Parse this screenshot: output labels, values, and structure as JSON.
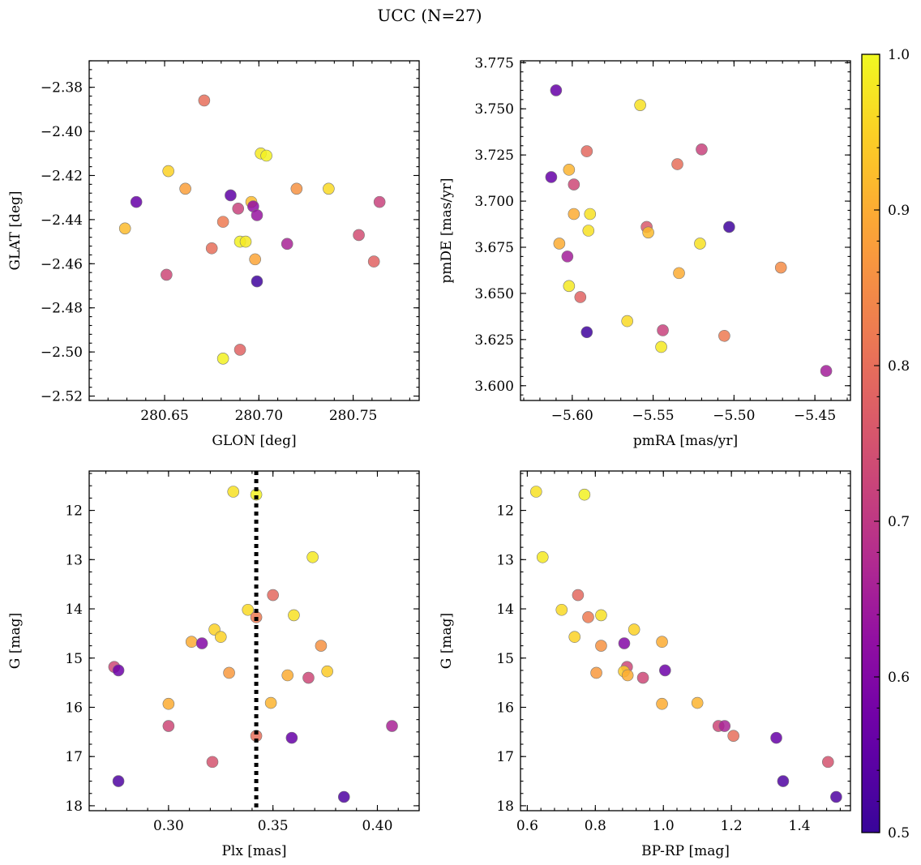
{
  "figure": {
    "title": "UCC (N=27)"
  },
  "colorbar": {
    "min": 0.5,
    "max": 1.0,
    "ticks": [
      "0.5",
      "0.6",
      "0.7",
      "0.8",
      "0.9",
      "1.0"
    ],
    "colormap": "plasma"
  },
  "chart_data": [
    {
      "type": "scatter",
      "xlabel": "GLON [deg]",
      "ylabel": "GLAT [deg]",
      "xlim": [
        280.61,
        280.785
      ],
      "ylim": [
        -2.522,
        -2.368
      ],
      "yinverted": false,
      "xticks": [
        "280.65",
        "280.70",
        "280.75"
      ],
      "yticks": [
        "-2.38",
        "-2.40",
        "-2.42",
        "-2.44",
        "-2.46",
        "-2.48",
        "-2.50",
        "-2.52"
      ],
      "points": [
        {
          "x": 280.671,
          "y": -2.386,
          "c": 0.8
        },
        {
          "x": 280.701,
          "y": -2.41,
          "c": 0.98
        },
        {
          "x": 280.704,
          "y": -2.411,
          "c": 0.99
        },
        {
          "x": 280.652,
          "y": -2.418,
          "c": 0.95
        },
        {
          "x": 280.661,
          "y": -2.426,
          "c": 0.88
        },
        {
          "x": 280.72,
          "y": -2.426,
          "c": 0.86
        },
        {
          "x": 280.737,
          "y": -2.426,
          "c": 0.96
        },
        {
          "x": 280.685,
          "y": -2.429,
          "c": 0.55
        },
        {
          "x": 280.696,
          "y": -2.432,
          "c": 0.92
        },
        {
          "x": 280.697,
          "y": -2.434,
          "c": 0.62
        },
        {
          "x": 280.635,
          "y": -2.432,
          "c": 0.56
        },
        {
          "x": 280.764,
          "y": -2.432,
          "c": 0.72
        },
        {
          "x": 280.689,
          "y": -2.435,
          "c": 0.72
        },
        {
          "x": 280.699,
          "y": -2.438,
          "c": 0.63
        },
        {
          "x": 280.681,
          "y": -2.441,
          "c": 0.82
        },
        {
          "x": 280.629,
          "y": -2.444,
          "c": 0.92
        },
        {
          "x": 280.753,
          "y": -2.447,
          "c": 0.74
        },
        {
          "x": 280.69,
          "y": -2.45,
          "c": 0.99
        },
        {
          "x": 280.693,
          "y": -2.45,
          "c": 0.98
        },
        {
          "x": 280.715,
          "y": -2.451,
          "c": 0.66
        },
        {
          "x": 280.675,
          "y": -2.453,
          "c": 0.8
        },
        {
          "x": 280.698,
          "y": -2.458,
          "c": 0.89
        },
        {
          "x": 280.761,
          "y": -2.459,
          "c": 0.78
        },
        {
          "x": 280.651,
          "y": -2.465,
          "c": 0.73
        },
        {
          "x": 280.699,
          "y": -2.468,
          "c": 0.51
        },
        {
          "x": 280.69,
          "y": -2.499,
          "c": 0.78
        },
        {
          "x": 280.681,
          "y": -2.503,
          "c": 0.99
        }
      ]
    },
    {
      "type": "scatter",
      "xlabel": "pmRA [mas/yr]",
      "ylabel": "pmDE [mas/yr]",
      "xlim": [
        -5.632,
        -5.428
      ],
      "ylim": [
        3.592,
        3.776
      ],
      "yinverted": false,
      "xticks": [
        "-5.60",
        "-5.55",
        "-5.50",
        "-5.45"
      ],
      "yticks": [
        "3.600",
        "3.625",
        "3.650",
        "3.675",
        "3.700",
        "3.725",
        "3.750",
        "3.775"
      ],
      "points": [
        {
          "x": -5.61,
          "y": 3.76,
          "c": 0.56
        },
        {
          "x": -5.558,
          "y": 3.752,
          "c": 0.97
        },
        {
          "x": -5.591,
          "y": 3.727,
          "c": 0.79
        },
        {
          "x": -5.52,
          "y": 3.728,
          "c": 0.72
        },
        {
          "x": -5.535,
          "y": 3.72,
          "c": 0.8
        },
        {
          "x": -5.602,
          "y": 3.717,
          "c": 0.91
        },
        {
          "x": -5.613,
          "y": 3.713,
          "c": 0.56
        },
        {
          "x": -5.599,
          "y": 3.709,
          "c": 0.73
        },
        {
          "x": -5.599,
          "y": 3.693,
          "c": 0.9
        },
        {
          "x": -5.589,
          "y": 3.693,
          "c": 0.97
        },
        {
          "x": -5.554,
          "y": 3.686,
          "c": 0.76
        },
        {
          "x": -5.553,
          "y": 3.683,
          "c": 0.92
        },
        {
          "x": -5.59,
          "y": 3.684,
          "c": 0.97
        },
        {
          "x": -5.503,
          "y": 3.686,
          "c": 0.51
        },
        {
          "x": -5.608,
          "y": 3.677,
          "c": 0.9
        },
        {
          "x": -5.521,
          "y": 3.677,
          "c": 0.97
        },
        {
          "x": -5.603,
          "y": 3.67,
          "c": 0.65
        },
        {
          "x": -5.471,
          "y": 3.664,
          "c": 0.85
        },
        {
          "x": -5.534,
          "y": 3.661,
          "c": 0.9
        },
        {
          "x": -5.602,
          "y": 3.654,
          "c": 0.98
        },
        {
          "x": -5.595,
          "y": 3.648,
          "c": 0.78
        },
        {
          "x": -5.566,
          "y": 3.635,
          "c": 0.96
        },
        {
          "x": -5.544,
          "y": 3.63,
          "c": 0.72
        },
        {
          "x": -5.591,
          "y": 3.629,
          "c": 0.51
        },
        {
          "x": -5.506,
          "y": 3.627,
          "c": 0.82
        },
        {
          "x": -5.545,
          "y": 3.621,
          "c": 0.98
        },
        {
          "x": -5.443,
          "y": 3.608,
          "c": 0.65
        }
      ]
    },
    {
      "type": "scatter",
      "xlabel": "Plx [mas]",
      "ylabel": "G [mag]",
      "xlim": [
        0.262,
        0.42
      ],
      "ylim": [
        18.1,
        11.2
      ],
      "yinverted": true,
      "xticks": [
        "0.30",
        "0.35",
        "0.40"
      ],
      "yticks": [
        "12",
        "13",
        "14",
        "15",
        "16",
        "17",
        "18"
      ],
      "vline": 0.342,
      "points": [
        {
          "x": 0.331,
          "y": 11.62,
          "c": 0.97
        },
        {
          "x": 0.342,
          "y": 11.68,
          "c": 0.99
        },
        {
          "x": 0.369,
          "y": 12.95,
          "c": 0.98
        },
        {
          "x": 0.35,
          "y": 13.72,
          "c": 0.79
        },
        {
          "x": 0.338,
          "y": 14.02,
          "c": 0.96
        },
        {
          "x": 0.36,
          "y": 14.13,
          "c": 0.97
        },
        {
          "x": 0.342,
          "y": 14.17,
          "c": 0.82
        },
        {
          "x": 0.322,
          "y": 14.42,
          "c": 0.95
        },
        {
          "x": 0.325,
          "y": 14.57,
          "c": 0.95
        },
        {
          "x": 0.311,
          "y": 14.67,
          "c": 0.9
        },
        {
          "x": 0.316,
          "y": 14.7,
          "c": 0.6
        },
        {
          "x": 0.373,
          "y": 14.75,
          "c": 0.86
        },
        {
          "x": 0.274,
          "y": 15.18,
          "c": 0.73
        },
        {
          "x": 0.276,
          "y": 15.25,
          "c": 0.57
        },
        {
          "x": 0.376,
          "y": 15.27,
          "c": 0.94
        },
        {
          "x": 0.329,
          "y": 15.3,
          "c": 0.87
        },
        {
          "x": 0.357,
          "y": 15.35,
          "c": 0.9
        },
        {
          "x": 0.367,
          "y": 15.4,
          "c": 0.73
        },
        {
          "x": 0.3,
          "y": 15.93,
          "c": 0.9
        },
        {
          "x": 0.349,
          "y": 15.91,
          "c": 0.91
        },
        {
          "x": 0.3,
          "y": 16.38,
          "c": 0.73
        },
        {
          "x": 0.407,
          "y": 16.38,
          "c": 0.66
        },
        {
          "x": 0.342,
          "y": 16.58,
          "c": 0.8
        },
        {
          "x": 0.359,
          "y": 16.62,
          "c": 0.56
        },
        {
          "x": 0.321,
          "y": 17.11,
          "c": 0.75
        },
        {
          "x": 0.276,
          "y": 17.5,
          "c": 0.53
        },
        {
          "x": 0.384,
          "y": 17.82,
          "c": 0.53
        }
      ]
    },
    {
      "type": "scatter",
      "xlabel": "BP-RP [mag]",
      "ylabel": "G [mag]",
      "xlim": [
        0.58,
        1.55
      ],
      "ylim": [
        18.1,
        11.2
      ],
      "yinverted": true,
      "xticks": [
        "0.6",
        "0.8",
        "1.0",
        "1.2",
        "1.4"
      ],
      "yticks": [
        "12",
        "13",
        "14",
        "15",
        "16",
        "17",
        "18"
      ],
      "points": [
        {
          "x": 0.626,
          "y": 11.62,
          "c": 0.97
        },
        {
          "x": 0.768,
          "y": 11.68,
          "c": 0.99
        },
        {
          "x": 0.645,
          "y": 12.95,
          "c": 0.98
        },
        {
          "x": 0.749,
          "y": 13.72,
          "c": 0.79
        },
        {
          "x": 0.701,
          "y": 14.02,
          "c": 0.96
        },
        {
          "x": 0.817,
          "y": 14.13,
          "c": 0.97
        },
        {
          "x": 0.779,
          "y": 14.17,
          "c": 0.82
        },
        {
          "x": 0.914,
          "y": 14.42,
          "c": 0.95
        },
        {
          "x": 0.739,
          "y": 14.57,
          "c": 0.95
        },
        {
          "x": 0.996,
          "y": 14.67,
          "c": 0.9
        },
        {
          "x": 0.885,
          "y": 14.7,
          "c": 0.6
        },
        {
          "x": 0.817,
          "y": 14.75,
          "c": 0.86
        },
        {
          "x": 0.893,
          "y": 15.18,
          "c": 0.73
        },
        {
          "x": 1.005,
          "y": 15.25,
          "c": 0.57
        },
        {
          "x": 0.884,
          "y": 15.27,
          "c": 0.94
        },
        {
          "x": 0.803,
          "y": 15.3,
          "c": 0.87
        },
        {
          "x": 0.895,
          "y": 15.35,
          "c": 0.9
        },
        {
          "x": 0.94,
          "y": 15.4,
          "c": 0.73
        },
        {
          "x": 0.996,
          "y": 15.93,
          "c": 0.9
        },
        {
          "x": 1.1,
          "y": 15.91,
          "c": 0.91
        },
        {
          "x": 1.162,
          "y": 16.38,
          "c": 0.73
        },
        {
          "x": 1.18,
          "y": 16.38,
          "c": 0.66
        },
        {
          "x": 1.206,
          "y": 16.58,
          "c": 0.8
        },
        {
          "x": 1.332,
          "y": 16.62,
          "c": 0.56
        },
        {
          "x": 1.484,
          "y": 17.11,
          "c": 0.75
        },
        {
          "x": 1.352,
          "y": 17.5,
          "c": 0.53
        },
        {
          "x": 1.508,
          "y": 17.82,
          "c": 0.53
        }
      ]
    }
  ]
}
